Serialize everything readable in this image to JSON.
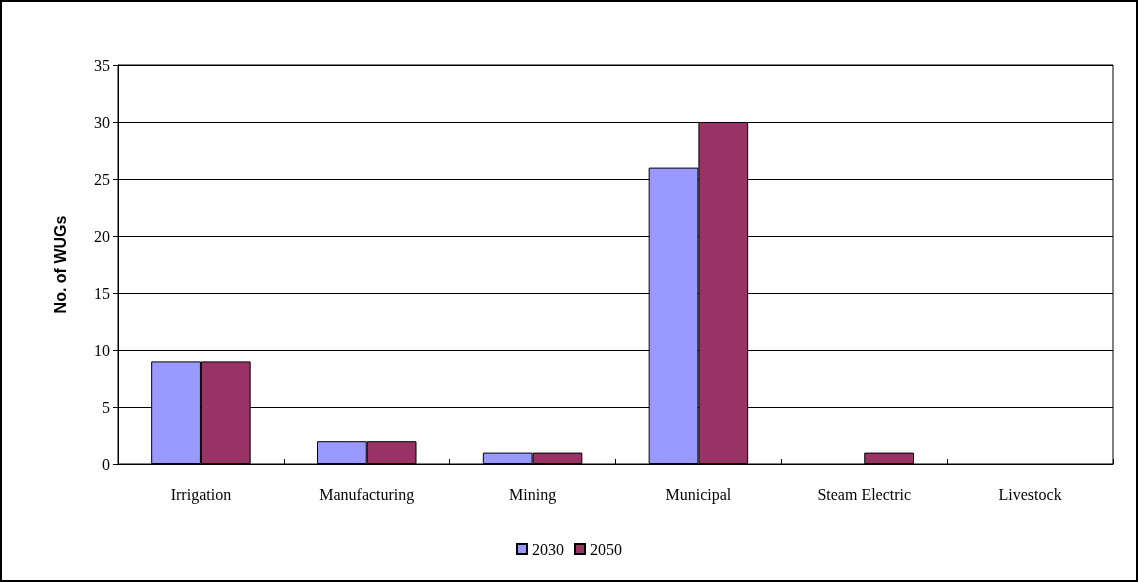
{
  "chart_data": {
    "type": "bar",
    "ylabel": "No. of WUGs",
    "categories": [
      "Irrigation",
      "Manufacturing",
      "Mining",
      "Municipal",
      "Steam Electric",
      "Livestock"
    ],
    "series": [
      {
        "name": "2030",
        "color": "#9999ff",
        "values": [
          9,
          2,
          1,
          26,
          0,
          0
        ]
      },
      {
        "name": "2050",
        "color": "#993366",
        "values": [
          9,
          2,
          1,
          30,
          1,
          0
        ]
      }
    ],
    "ylim": [
      0,
      35
    ],
    "yticks": [
      0,
      5,
      10,
      15,
      20,
      25,
      30,
      35
    ],
    "grid": "y",
    "legend": "bottom"
  }
}
